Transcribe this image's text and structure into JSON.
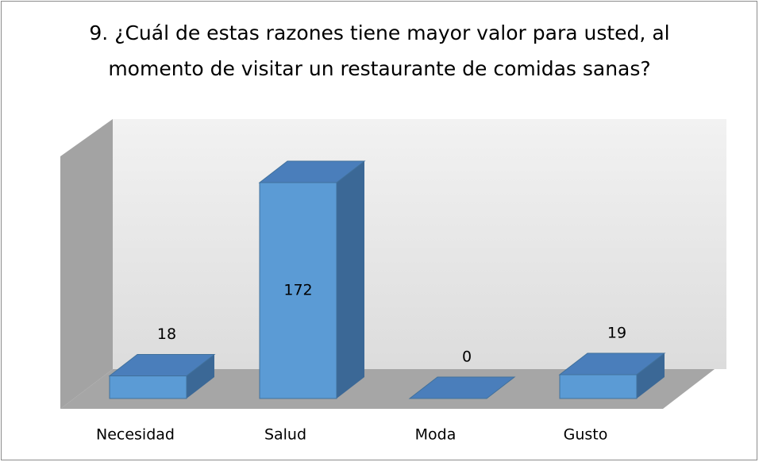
{
  "chart_data": {
    "type": "bar",
    "title": "9. ¿Cuál de estas razones tiene mayor valor para usted, al momento de visitar un restaurante de comidas sanas?",
    "categories": [
      "Necesidad",
      "Salud",
      "Moda",
      "Gusto"
    ],
    "values": [
      18,
      172,
      0,
      19
    ],
    "color": "#5b9bd5"
  }
}
